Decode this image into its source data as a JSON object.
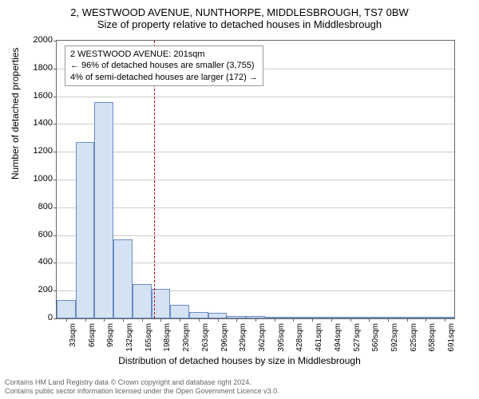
{
  "title": {
    "line1": "2, WESTWOOD AVENUE, NUNTHORPE, MIDDLESBROUGH, TS7 0BW",
    "line2": "Size of property relative to detached houses in Middlesbrough"
  },
  "chart": {
    "type": "histogram",
    "ylabel": "Number of detached properties",
    "xlabel": "Distribution of detached houses by size in Middlesbrough",
    "background_color": "#ffffff",
    "grid_color": "#cccccc",
    "axis_color": "#666666",
    "bar_fill": "#d4e2f4",
    "bar_border": "#6a8cc4",
    "ref_line_color": "#cc0000",
    "ylim": [
      0,
      2000
    ],
    "ytick_step": 200,
    "yticks": [
      0,
      200,
      400,
      600,
      800,
      1000,
      1200,
      1400,
      1600,
      1800,
      2000
    ],
    "x_categories": [
      "33sqm",
      "66sqm",
      "99sqm",
      "132sqm",
      "165sqm",
      "198sqm",
      "230sqm",
      "263sqm",
      "296sqm",
      "329sqm",
      "362sqm",
      "395sqm",
      "428sqm",
      "461sqm",
      "494sqm",
      "527sqm",
      "560sqm",
      "592sqm",
      "625sqm",
      "658sqm",
      "691sqm"
    ],
    "values": [
      130,
      1270,
      1560,
      570,
      245,
      210,
      95,
      45,
      40,
      20,
      20,
      10,
      10,
      5,
      5,
      5,
      5,
      0,
      0,
      0,
      0
    ],
    "ref_line_value": 201,
    "ref_line_bin_index": 5
  },
  "annotation": {
    "line1": "2 WESTWOOD AVENUE: 201sqm",
    "line2": "← 96% of detached houses are smaller (3,755)",
    "line3": "4% of semi-detached houses are larger (172) →"
  },
  "footer": {
    "line1": "Contains HM Land Registry data © Crown copyright and database right 2024.",
    "line2": "Contains public sector information licensed under the Open Government Licence v3.0."
  }
}
